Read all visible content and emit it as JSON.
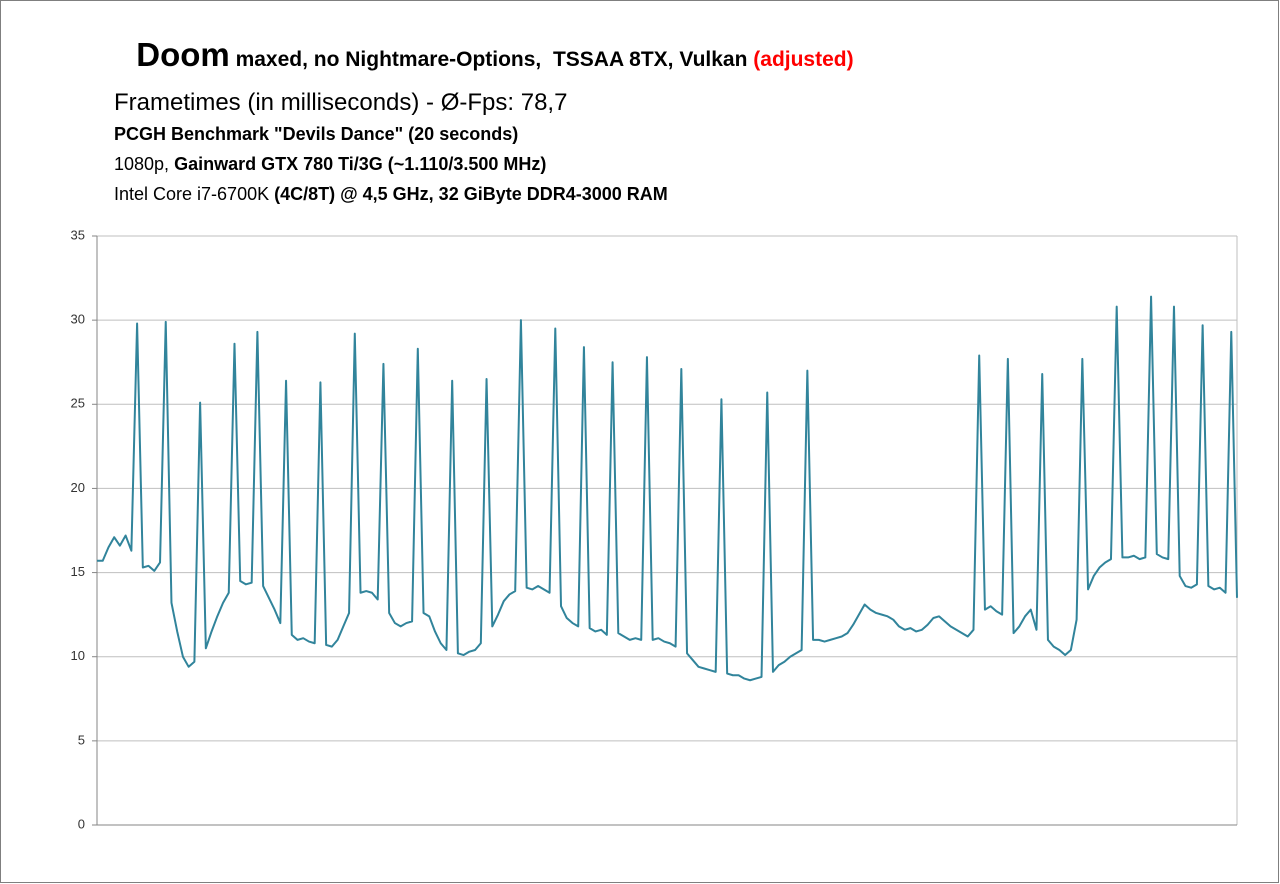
{
  "chart_data": {
    "type": "line",
    "title": "Doom",
    "title_detail": " maxed, no Nightmare-Options,  TSSAA 8TX, Vulkan ",
    "title_note": "(adjusted)",
    "title_note_color": "#ff0000",
    "subtitle": "Frametimes (in milliseconds) - Ø-Fps: 78,7",
    "info_lines": [
      [
        {
          "text": "PCGH Benchmark \"Devils Dance\" (20 seconds)",
          "bold": true
        }
      ],
      [
        {
          "text": "1080p, ",
          "bold": false
        },
        {
          "text": "Gainward GTX 780 Ti/3G (~1.110/3.500 MHz)",
          "bold": true
        }
      ],
      [
        {
          "text": "Intel Core i7-6700K ",
          "bold": false
        },
        {
          "text": "(4C/8T) @ 4,5 GHz, 32 GiByte DDR4-3000 RAM",
          "bold": true
        }
      ]
    ],
    "ylim": [
      0,
      35
    ],
    "yticks": [
      0,
      5,
      10,
      15,
      20,
      25,
      30,
      35
    ],
    "grid": true,
    "series": [
      {
        "color": "#31849b",
        "values": [
          15.7,
          15.7,
          16.5,
          17.1,
          16.6,
          17.2,
          16.3,
          29.8,
          15.3,
          15.4,
          15.1,
          15.6,
          29.9,
          13.2,
          11.5,
          10.0,
          9.4,
          9.7,
          25.1,
          10.5,
          11.5,
          12.4,
          13.2,
          13.8,
          28.6,
          14.5,
          14.3,
          14.4,
          29.3,
          14.2,
          13.5,
          12.8,
          12.0,
          26.4,
          11.3,
          11.0,
          11.1,
          10.9,
          10.8,
          26.3,
          10.7,
          10.6,
          11.0,
          11.8,
          12.6,
          29.2,
          13.8,
          13.9,
          13.8,
          13.4,
          27.4,
          12.6,
          12.0,
          11.8,
          12.0,
          12.1,
          28.3,
          12.6,
          12.4,
          11.5,
          10.8,
          10.4,
          26.4,
          10.2,
          10.1,
          10.3,
          10.4,
          10.8,
          26.5,
          11.8,
          12.5,
          13.3,
          13.7,
          13.9,
          30.0,
          14.1,
          14.0,
          14.2,
          14.0,
          13.8,
          29.5,
          13.0,
          12.3,
          12.0,
          11.8,
          28.4,
          11.7,
          11.5,
          11.6,
          11.3,
          27.5,
          11.4,
          11.2,
          11.0,
          11.1,
          11.0,
          27.8,
          11.0,
          11.1,
          10.9,
          10.8,
          10.6,
          27.1,
          10.2,
          9.8,
          9.4,
          9.3,
          9.2,
          9.1,
          25.3,
          9.0,
          8.9,
          8.9,
          8.7,
          8.6,
          8.7,
          8.8,
          25.7,
          9.1,
          9.5,
          9.7,
          10.0,
          10.2,
          10.4,
          27.0,
          11.0,
          11.0,
          10.9,
          11.0,
          11.1,
          11.2,
          11.4,
          11.9,
          12.5,
          13.1,
          12.8,
          12.6,
          12.5,
          12.4,
          12.2,
          11.8,
          11.6,
          11.7,
          11.5,
          11.6,
          11.9,
          12.3,
          12.4,
          12.1,
          11.8,
          11.6,
          11.4,
          11.2,
          11.6,
          27.9,
          12.8,
          13.0,
          12.7,
          12.5,
          27.7,
          11.4,
          11.8,
          12.4,
          12.8,
          11.6,
          26.8,
          11.0,
          10.6,
          10.4,
          10.1,
          10.4,
          12.2,
          27.7,
          14.0,
          14.8,
          15.3,
          15.6,
          15.8,
          30.8,
          15.9,
          15.9,
          16.0,
          15.8,
          15.9,
          31.4,
          16.1,
          15.9,
          15.8,
          30.8,
          14.8,
          14.2,
          14.1,
          14.3,
          29.7,
          14.2,
          14.0,
          14.1,
          13.8,
          29.3,
          13.5
        ]
      }
    ]
  }
}
